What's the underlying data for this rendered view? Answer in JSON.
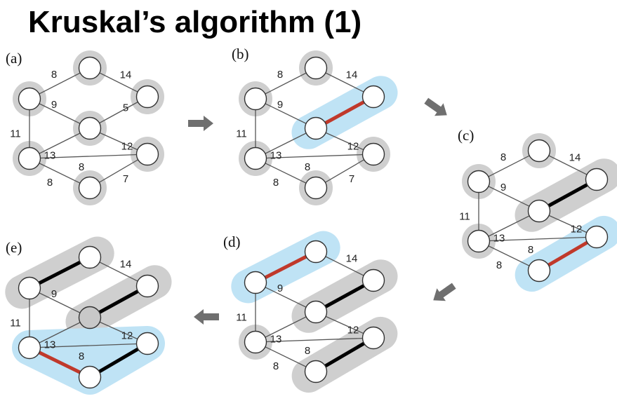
{
  "title": "Kruskal’s algorithm (1)",
  "colors": {
    "edge": "#555555",
    "edge_tree": "#000000",
    "edge_new": "#c0392b",
    "node_fill": "#ffffff",
    "node_fill_highlight": "#c8c8c8",
    "node_stroke": "#333333",
    "component_gray": "#cfcfcf",
    "component_blue": "#bfe3f5",
    "arrow": "#6f6f6f"
  },
  "panels": [
    {
      "label": "(a)",
      "edge_labels": {
        "ab": "8",
        "bc": "14",
        "ad": "11",
        "ae": "9",
        "ce": "5",
        "de": "13",
        "ef": "12",
        "df": "8",
        "dg": "8",
        "fg": "7"
      }
    },
    {
      "label": "(b)",
      "edge_labels": {
        "ab": "8",
        "bc": "14",
        "ad": "11",
        "ae": "9",
        "de": "13",
        "ef": "12",
        "df": "8",
        "dg": "8",
        "fg": "7"
      }
    },
    {
      "label": "(c)",
      "edge_labels": {
        "ab": "8",
        "bc": "14",
        "ad": "11",
        "ae": "9",
        "de": "13",
        "ef": "12",
        "df": "8",
        "dg": "8"
      }
    },
    {
      "label": "(d)",
      "edge_labels": {
        "bc": "14",
        "ad": "11",
        "ae": "9",
        "de": "13",
        "ef": "12",
        "df": "8",
        "dg": "8"
      }
    },
    {
      "label": "(e)",
      "edge_labels": {
        "bc": "14",
        "ad": "11",
        "ae": "9",
        "de": "13",
        "ef": "12",
        "df": "8"
      }
    }
  ]
}
